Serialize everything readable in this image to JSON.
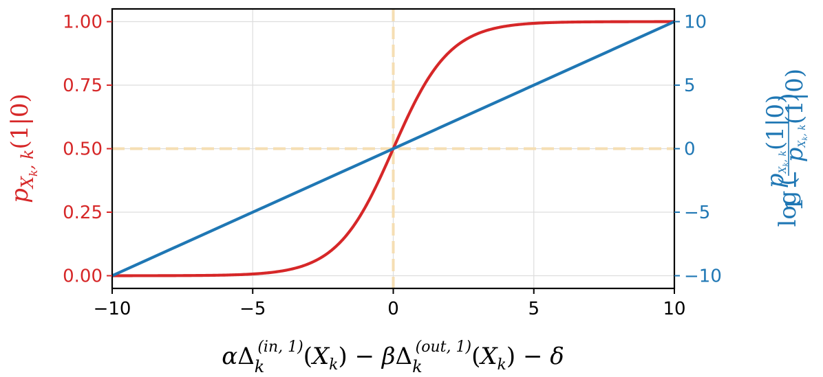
{
  "chart_data": {
    "type": "line",
    "xlabel": "αΔ_k^(in, 1)(X_k) − βΔ_k^(out, 1)(X_k) − δ",
    "ylabel_left": "p_{X_k, k}(1|0)",
    "ylabel_right": "log(p_{X_k, k}(1|0) / (1 − p_{X_k, k}(1|0)))",
    "xlim": [
      -10,
      10
    ],
    "ylim_left": [
      -0.05,
      1.05
    ],
    "ylim_right": [
      -11,
      11
    ],
    "x_ticks": [
      -10,
      -5,
      0,
      5,
      10
    ],
    "x_tick_labels": [
      "−10",
      "−5",
      "0",
      "5",
      "10"
    ],
    "y_left_ticks": [
      0.0,
      0.25,
      0.5,
      0.75,
      1.0
    ],
    "y_left_tick_labels": [
      "0.00",
      "0.25",
      "0.50",
      "0.75",
      "1.00"
    ],
    "y_right_ticks": [
      -10,
      -5,
      0,
      5,
      10
    ],
    "y_right_tick_labels": [
      "−10",
      "−5",
      "0",
      "5",
      "10"
    ],
    "grid": true,
    "reference_lines": {
      "x": 0,
      "y_left": 0.5
    },
    "series": [
      {
        "axis": "left",
        "color": "#d62728",
        "function": "sigmoid",
        "x": [
          -10,
          -8,
          -6,
          -5,
          -4,
          -3,
          -2,
          -1,
          0,
          1,
          2,
          3,
          4,
          5,
          6,
          8,
          10
        ],
        "y": [
          5e-05,
          0.0003,
          0.0025,
          0.0067,
          0.018,
          0.047,
          0.119,
          0.269,
          0.5,
          0.731,
          0.881,
          0.953,
          0.982,
          0.9933,
          0.9975,
          0.9997,
          0.99995
        ]
      },
      {
        "axis": "right",
        "color": "#1f77b4",
        "function": "identity",
        "x": [
          -10,
          10
        ],
        "y": [
          -10,
          10
        ]
      }
    ],
    "colors": {
      "left_axis": "#d62728",
      "right_axis": "#1f77b4",
      "reference": "#f5deb3"
    }
  }
}
